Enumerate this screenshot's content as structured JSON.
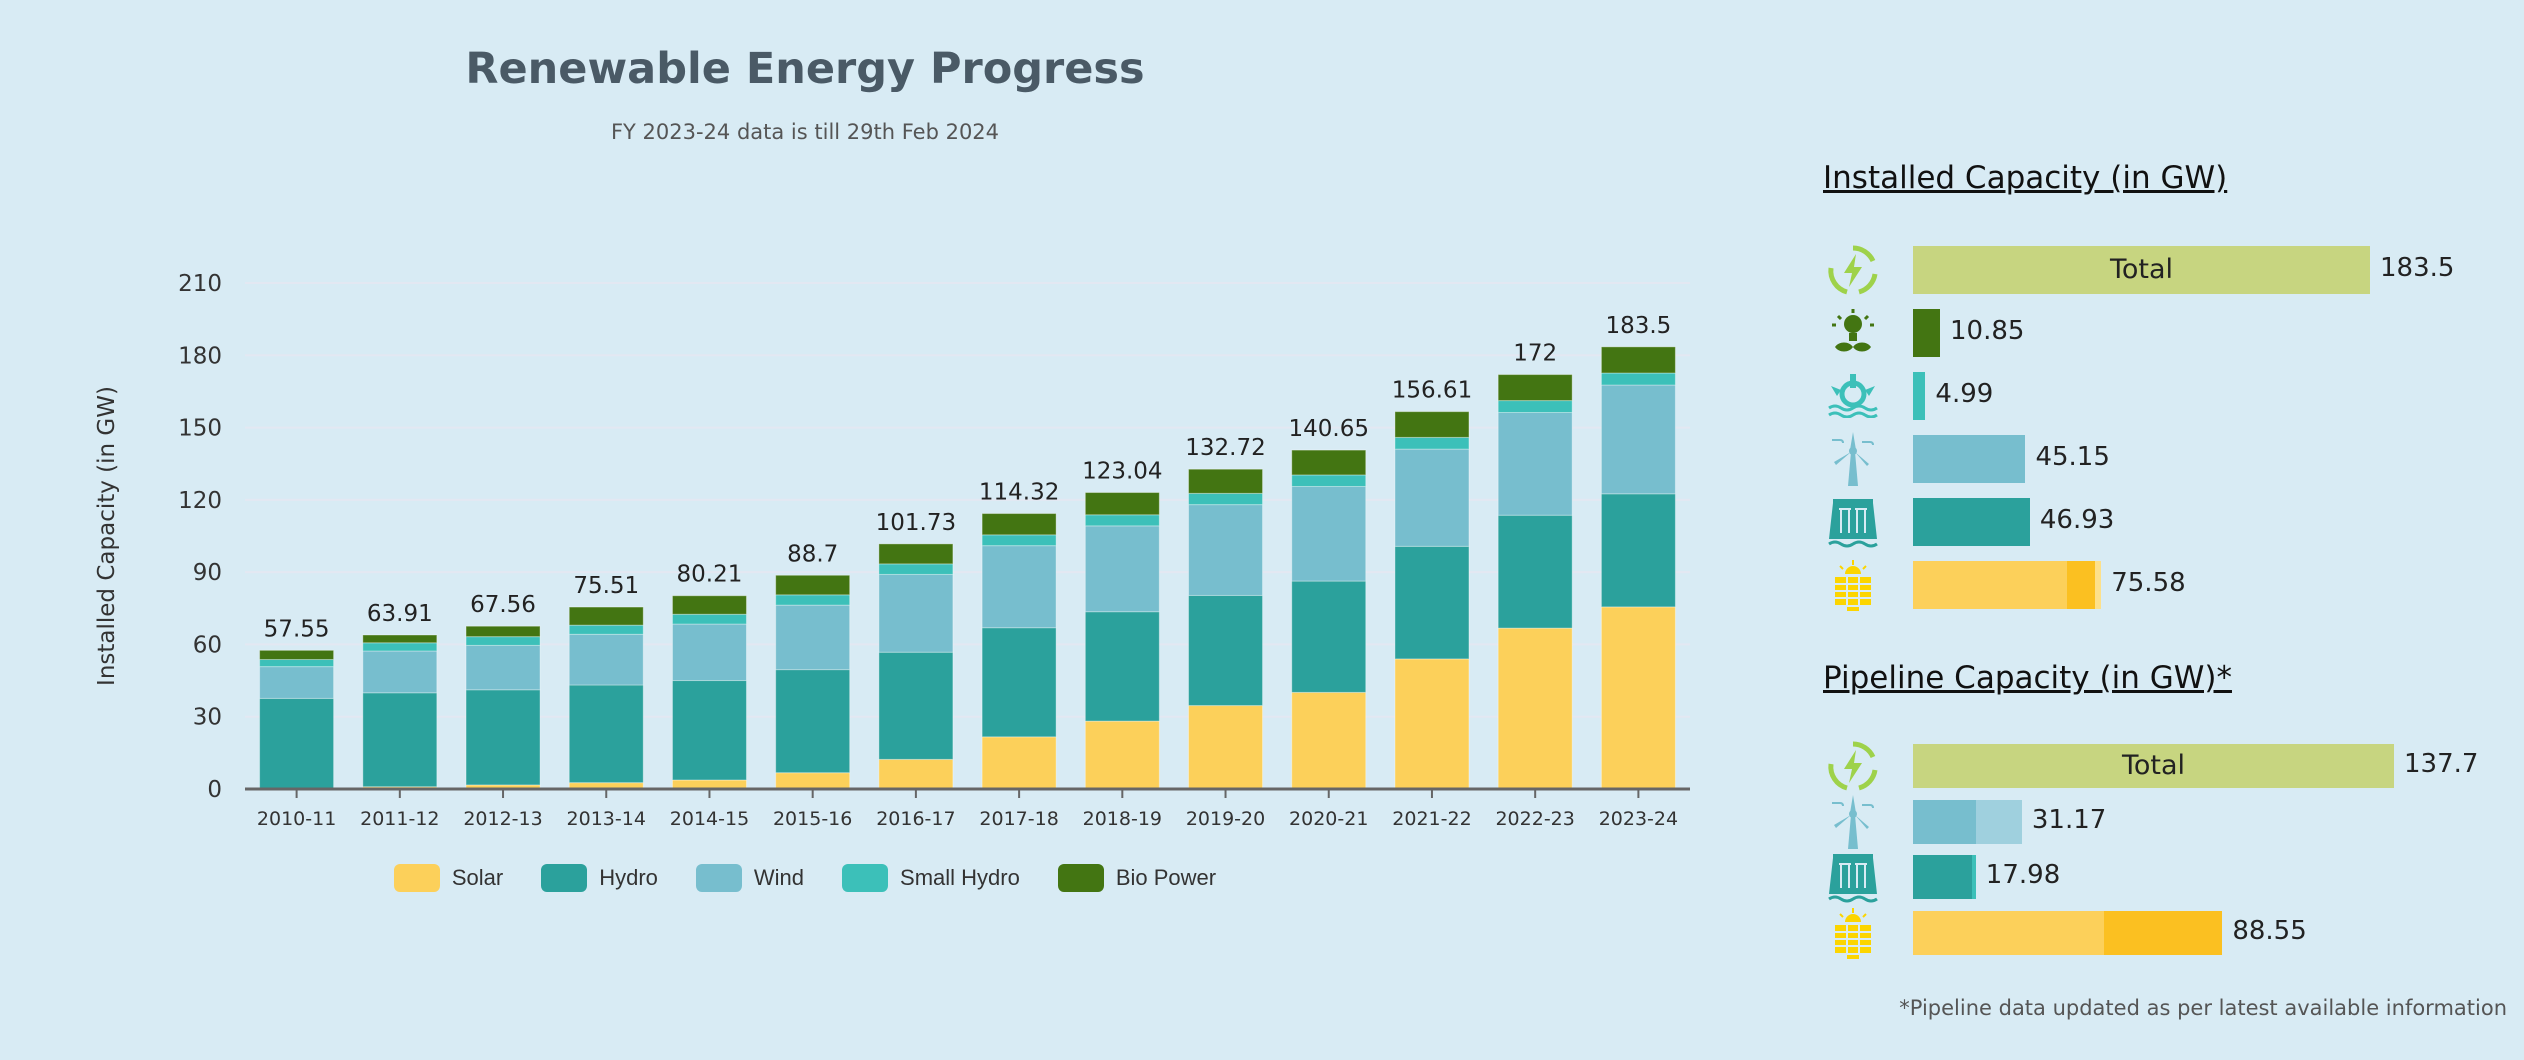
{
  "colors": {
    "Solar": "#fcd05a",
    "Hydro": "#2ba19c",
    "Wind": "#77bece",
    "Small Hydro": "#3cc0b9",
    "Bio Power": "#437512",
    "total": "#c7d580",
    "solar_dark": "#fbc021",
    "solar_pale": "#fde08a",
    "wind_light": "#9fd0de"
  },
  "chart_data": {
    "type": "bar",
    "stacked": true,
    "title": "Renewable Energy Progress",
    "subtitle": "FY 2023-24 data is till 29th Feb 2024",
    "xlabel": "",
    "ylabel": "Installed Capacity (in GW)",
    "ylim": [
      0,
      210
    ],
    "yticks": [
      0,
      30,
      60,
      90,
      120,
      150,
      180,
      210
    ],
    "grid": true,
    "legend_position": "bottom",
    "categories": [
      "2010-11",
      "2011-12",
      "2012-13",
      "2013-14",
      "2014-15",
      "2015-16",
      "2016-17",
      "2017-18",
      "2018-19",
      "2019-20",
      "2020-21",
      "2021-22",
      "2022-23",
      "2023-24"
    ],
    "totals": [
      "57.55",
      "63.91",
      "67.56",
      "75.51",
      "80.21",
      "88.7",
      "101.73",
      "114.32",
      "123.04",
      "132.72",
      "140.65",
      "156.61",
      "172",
      "183.5"
    ],
    "series": [
      {
        "name": "Solar",
        "values": [
          0.04,
          0.94,
          1.69,
          2.63,
          3.74,
          6.76,
          12.29,
          21.65,
          28.18,
          34.63,
          40.09,
          53.99,
          66.78,
          75.58
        ]
      },
      {
        "name": "Hydro",
        "values": [
          37.57,
          38.99,
          39.49,
          40.53,
          41.27,
          42.78,
          44.48,
          45.29,
          45.4,
          45.7,
          46.21,
          46.72,
          46.85,
          46.93
        ]
      },
      {
        "name": "Wind",
        "values": [
          13.18,
          17.35,
          18.42,
          21.04,
          23.45,
          26.77,
          32.28,
          34.05,
          35.63,
          37.69,
          39.25,
          40.36,
          42.63,
          45.15
        ]
      },
      {
        "name": "Small Hydro",
        "values": [
          2.95,
          3.4,
          3.63,
          3.8,
          4.06,
          4.27,
          4.38,
          4.49,
          4.59,
          4.68,
          4.79,
          4.85,
          4.94,
          4.99
        ]
      },
      {
        "name": "Bio Power",
        "values": [
          3.81,
          3.23,
          4.33,
          7.51,
          7.69,
          8.12,
          8.3,
          8.84,
          9.24,
          10.02,
          10.31,
          10.69,
          10.8,
          10.85
        ]
      }
    ]
  },
  "installed": {
    "title": "Installed Capacity (in GW)",
    "total_label": "Total",
    "rows": [
      {
        "icon": "renewable-energy-icon",
        "label": "183.5",
        "value": 183.5,
        "segments": [
          {
            "v": 183.5,
            "c": "total"
          }
        ],
        "total": true
      },
      {
        "icon": "bio-power-icon",
        "label": "10.85",
        "value": 10.85,
        "segments": [
          {
            "v": 10.85,
            "c": "Bio Power"
          }
        ]
      },
      {
        "icon": "small-hydro-icon",
        "label": "4.99",
        "value": 4.99,
        "segments": [
          {
            "v": 4.99,
            "c": "Small Hydro"
          }
        ]
      },
      {
        "icon": "wind-turbine-icon",
        "label": "45.15",
        "value": 45.15,
        "segments": [
          {
            "v": 45.15,
            "c": "Wind"
          }
        ]
      },
      {
        "icon": "hydro-dam-icon",
        "label": "46.93",
        "value": 46.93,
        "segments": [
          {
            "v": 46.93,
            "c": "Hydro"
          }
        ]
      },
      {
        "icon": "solar-panel-icon",
        "label": "75.58",
        "value": 75.58,
        "segments": [
          {
            "v": 62,
            "c": "Solar"
          },
          {
            "v": 11,
            "c": "solar_dark"
          },
          {
            "v": 2.58,
            "c": "solar_pale"
          }
        ]
      }
    ]
  },
  "pipeline": {
    "title": "Pipeline Capacity (in GW)*",
    "total_label": "Total",
    "rows": [
      {
        "icon": "renewable-energy-icon",
        "label": "137.7",
        "value": 137.7,
        "segments": [
          {
            "v": 137.7,
            "c": "total"
          }
        ],
        "total": true
      },
      {
        "icon": "wind-turbine-icon",
        "label": "31.17",
        "value": 31.17,
        "segments": [
          {
            "v": 18,
            "c": "Wind"
          },
          {
            "v": 13.17,
            "c": "wind_light"
          }
        ]
      },
      {
        "icon": "hydro-dam-icon",
        "label": "17.98",
        "value": 17.98,
        "segments": [
          {
            "v": 17,
            "c": "Hydro"
          },
          {
            "v": 0.98,
            "c": "Small Hydro"
          }
        ]
      },
      {
        "icon": "solar-panel-icon",
        "label": "88.55",
        "value": 88.55,
        "segments": [
          {
            "v": 54.8,
            "c": "Solar"
          },
          {
            "v": 33.75,
            "c": "solar_dark"
          }
        ]
      }
    ]
  },
  "footnote": "*Pipeline data updated as per latest available information"
}
